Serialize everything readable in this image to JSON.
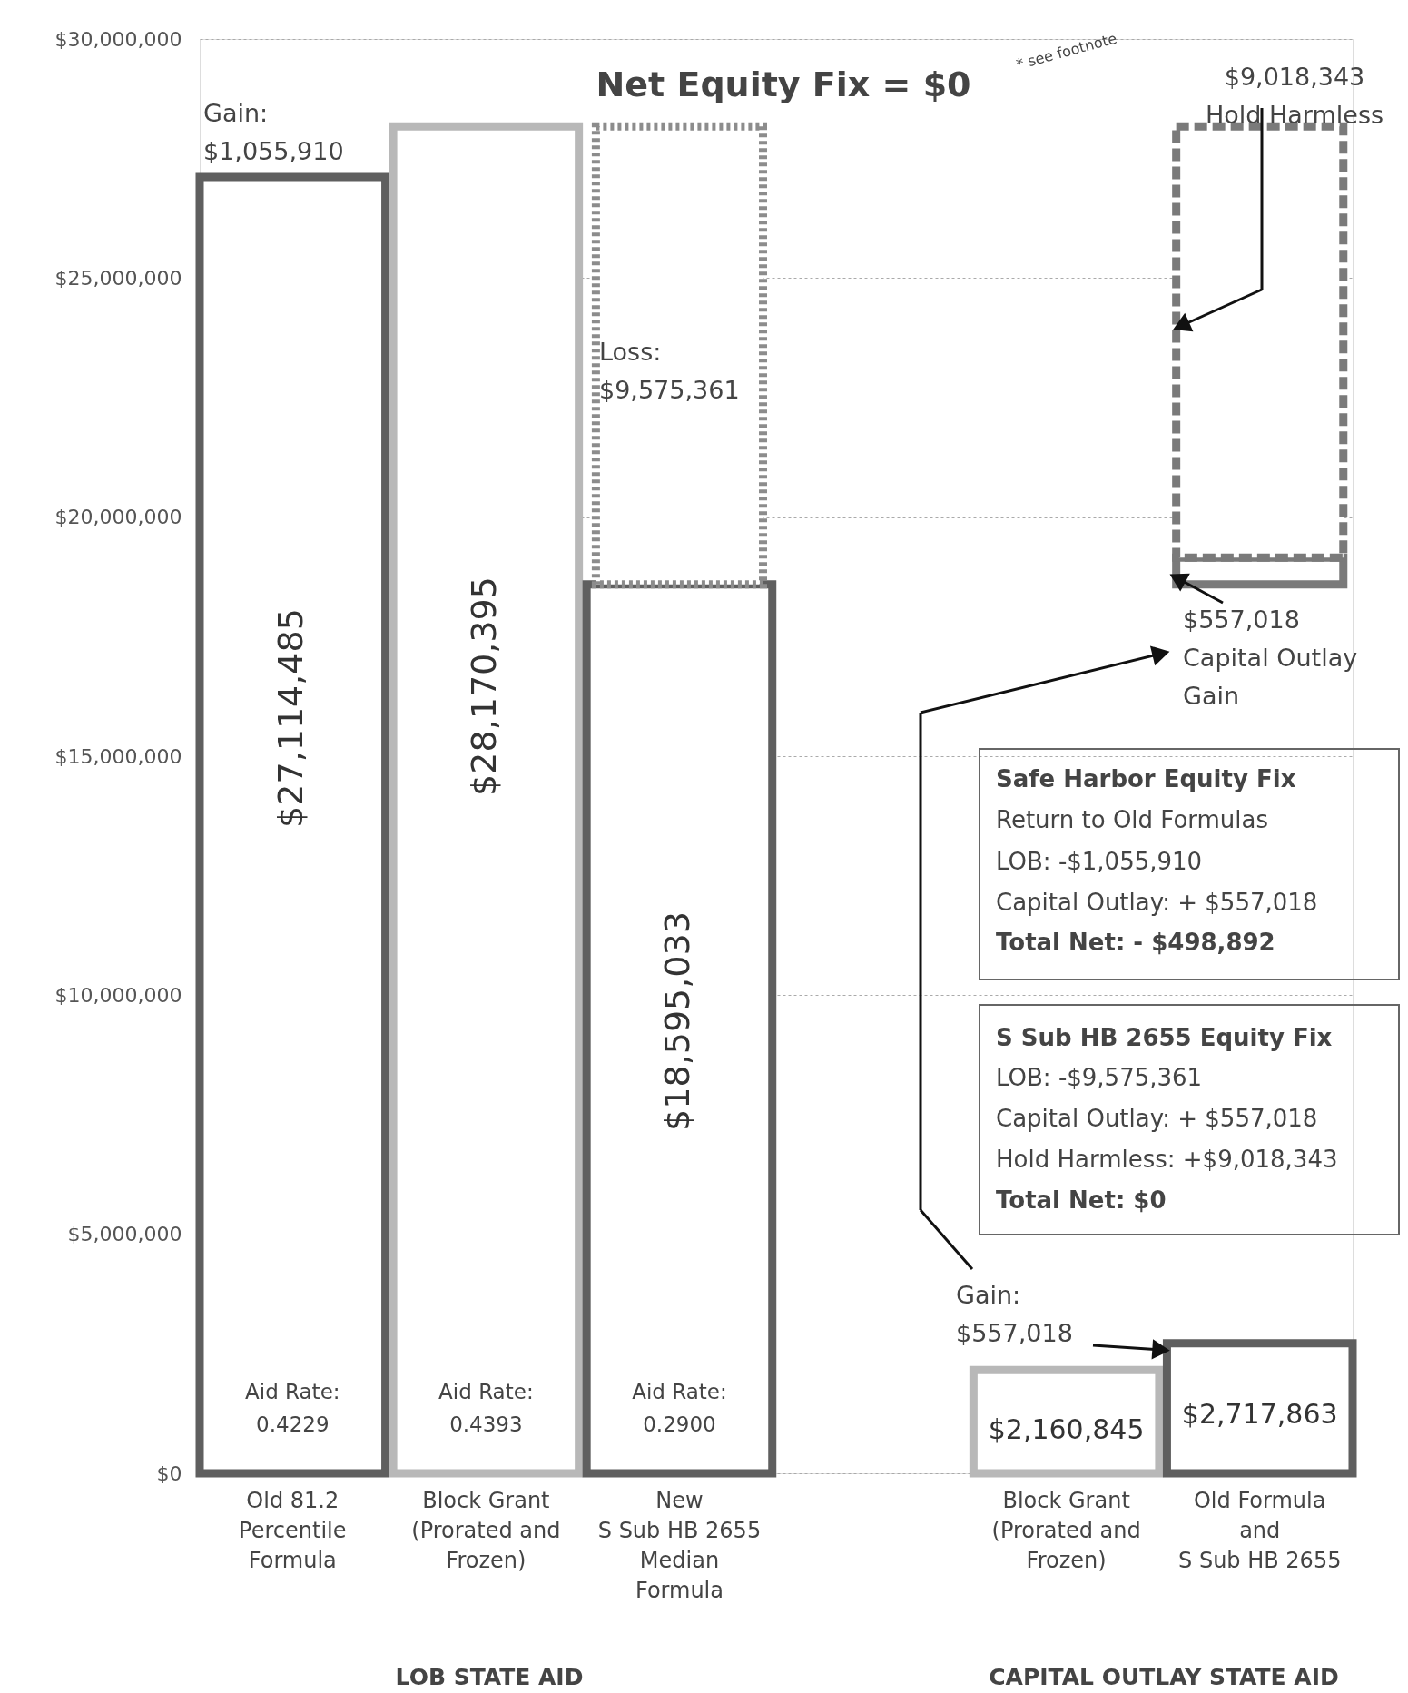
{
  "chart_data": {
    "type": "bar",
    "categories": [
      "Old 81.2\nPercentile\nFormula",
      "Block Grant\n(Prorated and\nFrozen)",
      "New\nS Sub HB 2655\nMedian\nFormula",
      null,
      "Block Grant\n(Prorated and\nFrozen)",
      "Old Formula\nand\nS Sub HB 2655"
    ],
    "series": [
      {
        "colors": [
          "#5f5f5f",
          "#b8b8b8",
          "#5f5f5f",
          null,
          "#b8b8b8",
          "#5f5f5f"
        ],
        "values": [
          27114485,
          28170395,
          18595033,
          null,
          2160845,
          2717863
        ],
        "value_labels": [
          "$27,114,485",
          "$28,170,395",
          "$18,595,033",
          null,
          "$2,160,845",
          "$2,717,863"
        ],
        "line_style": "solid"
      },
      {
        "color": "#8c8c8c",
        "base": [
          null,
          null,
          18595033,
          null,
          null,
          null
        ],
        "values": [
          null,
          null,
          9575361,
          null,
          null,
          null
        ],
        "line_style": "dotted"
      },
      {
        "color": "#7a7a7a",
        "base": [
          null,
          null,
          null,
          null,
          null,
          18595033
        ],
        "values": [
          null,
          null,
          null,
          null,
          null,
          557018
        ],
        "line_style": "solid"
      },
      {
        "color": "#7a7a7a",
        "base": [
          null,
          null,
          null,
          null,
          null,
          19152051
        ],
        "values": [
          null,
          null,
          null,
          null,
          null,
          9018343
        ],
        "line_style": "dashed"
      }
    ],
    "ylim": [
      0,
      30000000
    ],
    "yticks": [
      {
        "value": 0,
        "label": "$0"
      },
      {
        "value": 5000000,
        "label": "$5,000,000"
      },
      {
        "value": 10000000,
        "label": "$10,000,000"
      },
      {
        "value": 15000000,
        "label": "$15,000,000"
      },
      {
        "value": 20000000,
        "label": "$20,000,000"
      },
      {
        "value": 25000000,
        "label": "$25,000,000"
      },
      {
        "value": 30000000,
        "label": "$30,000,000"
      }
    ],
    "grid": "y",
    "annotations": [
      "Gain:\n$1,055,910",
      "Loss:\n$9,575,361",
      "Net Equity Fix = $0",
      "* see footnote",
      "$9,018,343\nHold Harmless",
      "$557,018\nCapital Outlay\nGain",
      "Safe Harbor Equity Fix",
      "Return to Old Formulas",
      "LOB: -$1,055,910",
      "Capital Outlay: + $557,018",
      "Total Net: - $498,892",
      "S Sub HB 2655 Equity Fix",
      "LOB: -$9,575,361",
      "Capital Outlay: + $557,018",
      "Hold Harmless: +$9,018,343",
      "Total Net: $0",
      "Gain:\n$557,018",
      "Aid Rate:\n0.4229",
      "Aid Rate:\n0.4393",
      "Aid Rate:\n0.2900",
      "LOB STATE AID",
      "CAPITAL OUTLAY STATE AID"
    ]
  }
}
